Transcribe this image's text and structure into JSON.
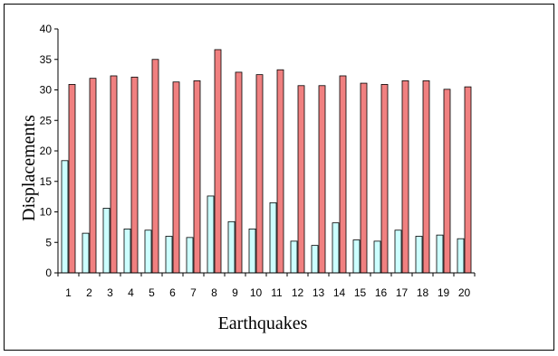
{
  "chart_data": {
    "type": "bar",
    "title": "",
    "xlabel": "Earthquakes",
    "ylabel": "Displacements",
    "ylim": [
      0,
      40
    ],
    "yticks": [
      0,
      5,
      10,
      15,
      20,
      25,
      30,
      35,
      40
    ],
    "categories": [
      "1",
      "2",
      "3",
      "4",
      "5",
      "6",
      "7",
      "8",
      "9",
      "10",
      "11",
      "12",
      "13",
      "14",
      "15",
      "16",
      "17",
      "18",
      "19",
      "20"
    ],
    "grid": false,
    "legend": "none",
    "series": [
      {
        "color": "#ccffff",
        "values": [
          18.4,
          6.5,
          10.6,
          7.2,
          7.0,
          6.0,
          5.8,
          12.6,
          8.4,
          7.2,
          11.5,
          5.2,
          4.5,
          8.2,
          5.4,
          5.2,
          7.0,
          6.0,
          6.2,
          5.6
        ]
      },
      {
        "color": "#f08080",
        "values": [
          30.9,
          31.9,
          32.3,
          32.1,
          35.0,
          31.3,
          31.5,
          36.6,
          32.9,
          32.5,
          33.3,
          30.7,
          30.7,
          32.3,
          31.1,
          30.9,
          31.5,
          31.5,
          30.1,
          30.5
        ]
      }
    ]
  }
}
